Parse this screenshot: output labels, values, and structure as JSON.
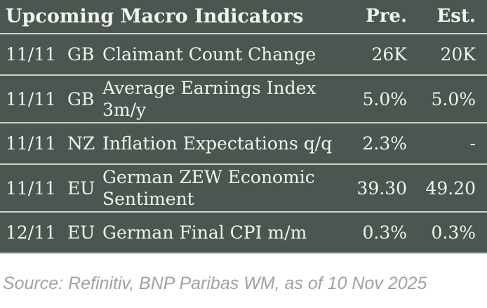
{
  "table": {
    "title": "Upcoming Macro Indicators",
    "col_pre": "Pre.",
    "col_est": "Est.",
    "rows": [
      {
        "date": "11/11",
        "country": "GB",
        "indicator": "Claimant Count Change",
        "pre": "26K",
        "est": "20K"
      },
      {
        "date": "11/11",
        "country": "GB",
        "indicator": "Average Earnings Index\n3m/y",
        "pre": "5.0%",
        "est": "5.0%"
      },
      {
        "date": "11/11",
        "country": "NZ",
        "indicator": "Inflation Expectations q/q",
        "pre": "2.3%",
        "est": "-"
      },
      {
        "date": "11/11",
        "country": "EU",
        "indicator": "German ZEW Economic\nSentiment",
        "pre": "39.30",
        "est": "49.20"
      },
      {
        "date": "12/11",
        "country": "EU",
        "indicator": "German Final CPI m/m",
        "pre": "0.3%",
        "est": "0.3%"
      }
    ]
  },
  "footer": {
    "source": "Source: Refinitiv, BNP Paribas WM, as of 10 Nov 2025"
  },
  "colors": {
    "table_bg": "#4A564F",
    "divider": "#C8D4C9",
    "text": "#F3F4EF",
    "source_text": "#9DA39E",
    "page_bg": "#FFFFFF"
  }
}
